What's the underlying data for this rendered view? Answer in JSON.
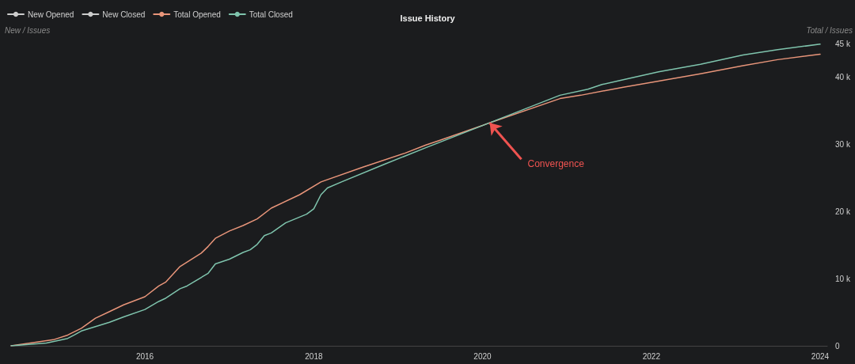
{
  "chart_data": {
    "type": "line",
    "title": "Issue History",
    "ylabel": "Total / Issues",
    "y2label": "New / Issues",
    "xlim": [
      "2014-06",
      "2024-02"
    ],
    "xticks": [
      "2016",
      "2018",
      "2020",
      "2022",
      "2024"
    ],
    "ylim": [
      0,
      45000
    ],
    "yticks": [
      0,
      {
        "value": 10000,
        "label": "10 k"
      },
      {
        "value": 20000,
        "label": "20 k"
      },
      {
        "value": 30000,
        "label": "30 k"
      },
      {
        "value": 40000,
        "label": "40 k"
      },
      {
        "value": 45000,
        "label": "45 k"
      }
    ],
    "series": [
      {
        "name": "New Opened",
        "color": "#cccccc"
      },
      {
        "name": "New Closed",
        "color": "#cccccc"
      },
      {
        "name": "Total Opened",
        "color": "#e8957a",
        "x": [
          "2014-06",
          "2014-12",
          "2015-02",
          "2015-04",
          "2015-06",
          "2015-08",
          "2015-10",
          "2016-01",
          "2016-03",
          "2016-04",
          "2016-06",
          "2016-09",
          "2016-10",
          "2016-11",
          "2017-01",
          "2017-03",
          "2017-05",
          "2017-07",
          "2017-11",
          "2018-02",
          "2018-08",
          "2019-02",
          "2019-05",
          "2019-07",
          "2020-01",
          "2020-02",
          "2020-12",
          "2021-03",
          "2021-09",
          "2022-02",
          "2022-08",
          "2023-02",
          "2023-07",
          "2024-01"
        ],
        "values": [
          0,
          900,
          1600,
          2600,
          4100,
          5100,
          6100,
          7300,
          8900,
          9500,
          11800,
          13800,
          14800,
          16000,
          17100,
          17900,
          18900,
          20500,
          22500,
          24400,
          26600,
          28700,
          29900,
          30600,
          32800,
          33200,
          36800,
          37300,
          38500,
          39400,
          40500,
          41700,
          42600,
          43400
        ]
      },
      {
        "name": "Total Closed",
        "color": "#7fc4ad",
        "x": [
          "2014-06",
          "2014-11",
          "2015-02",
          "2015-03",
          "2015-04",
          "2015-08",
          "2015-10",
          "2016-01",
          "2016-03",
          "2016-04",
          "2016-06",
          "2016-07",
          "2016-10",
          "2016-11",
          "2017-01",
          "2017-03",
          "2017-04",
          "2017-05",
          "2017-06",
          "2017-07",
          "2017-09",
          "2017-12",
          "2018-01",
          "2018-02",
          "2018-03",
          "2018-05",
          "2018-11",
          "2019-05",
          "2020-02",
          "2020-12",
          "2021-04",
          "2021-06",
          "2021-09",
          "2022-02",
          "2022-08",
          "2023-02",
          "2023-07",
          "2024-01"
        ],
        "values": [
          0,
          400,
          1100,
          1600,
          2200,
          3500,
          4300,
          5400,
          6600,
          7100,
          8500,
          8900,
          10800,
          12200,
          12900,
          13900,
          14300,
          15100,
          16400,
          16800,
          18300,
          19600,
          20400,
          22500,
          23500,
          24400,
          27000,
          29500,
          33200,
          37300,
          38200,
          38900,
          39600,
          40800,
          41900,
          43300,
          44100,
          44900
        ]
      }
    ],
    "annotations": [
      {
        "text": "Convergence",
        "x": "2020-02",
        "y": 33200
      }
    ],
    "legend": "top left",
    "grid": false
  }
}
